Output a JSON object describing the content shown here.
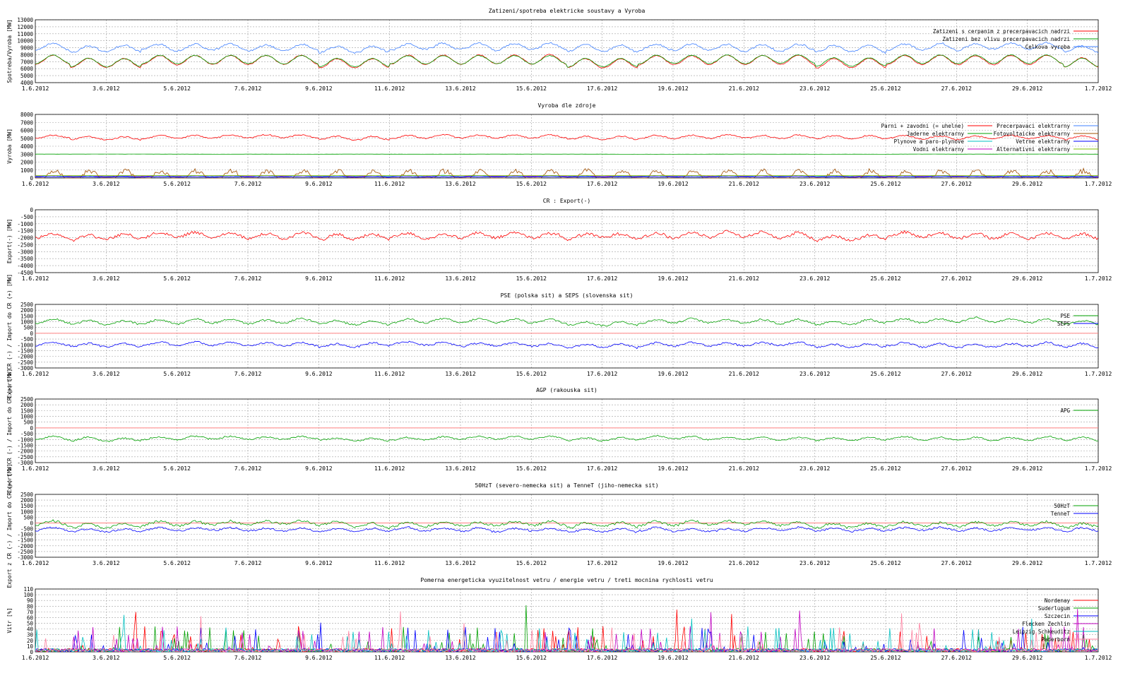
{
  "x_ticks": [
    "1.6.2012",
    "3.6.2012",
    "5.6.2012",
    "7.6.2012",
    "9.6.2012",
    "11.6.2012",
    "13.6.2012",
    "15.6.2012",
    "17.6.2012",
    "19.6.2012",
    "21.6.2012",
    "23.6.2012",
    "25.6.2012",
    "27.6.2012",
    "29.6.2012",
    "1.7.2012"
  ],
  "colors": {
    "red": "#ff0000",
    "green": "#00a000",
    "blue": "#0000ff",
    "lightblue": "#4080ff",
    "cyan": "#00c0c0",
    "magenta": "#c000c0",
    "brown": "#a05000",
    "olive": "#80c000",
    "pink": "#ff80a0",
    "zero_line": "#ff8080",
    "grid": "#a0a0a0"
  },
  "chart_data": [
    {
      "type": "line",
      "title": "Zatizeni/spotreba elektricke soustavy a Vyroba",
      "ylabel": "Spotreba/Vyroba [MW]",
      "ylim": [
        4000,
        13000
      ],
      "yticks": [
        "13000",
        "12000",
        "11000",
        "10000",
        "9000",
        "8000",
        "7000",
        "6000",
        "5000",
        "4000"
      ],
      "grid": true,
      "legend": "top-right",
      "series": [
        {
          "name": "Zatizeni s cerpanim z precerpavacich nadrzi",
          "color": "red",
          "base": 6600,
          "amp": 1300,
          "noise": 120
        },
        {
          "name": "Zatizeni bez vlivu precerpavacich nadrzi",
          "color": "green",
          "base": 6700,
          "amp": 1200,
          "noise": 100
        },
        {
          "name": "Celkova vyroba",
          "color": "lightblue",
          "base": 8700,
          "amp": 900,
          "noise": 250
        }
      ]
    },
    {
      "type": "line",
      "title": "Vyroba dle zdroje",
      "ylabel": "Vyroba [MW]",
      "ylim": [
        0,
        8000
      ],
      "yticks": [
        "8000",
        "7000",
        "6000",
        "5000",
        "4000",
        "3000",
        "2000",
        "1000",
        "0"
      ],
      "grid": true,
      "legend": "top-right",
      "series": [
        {
          "name": "Parni + zavodni (= uhelne)",
          "color": "red",
          "base": 5000,
          "amp": 400,
          "noise": 150
        },
        {
          "name": "Jaderne elektrarny",
          "color": "green",
          "base": 3000,
          "amp": 0,
          "noise": 15
        },
        {
          "name": "Plynove a paro-plynove",
          "color": "cyan",
          "base": 250,
          "amp": 60,
          "noise": 30
        },
        {
          "name": "Vodni elektrarny",
          "color": "magenta",
          "base": 200,
          "amp": 100,
          "noise": 40
        },
        {
          "name": "Precerpavaci elektrarny",
          "color": "lightblue",
          "base": 150,
          "amp": 150,
          "noise": 40
        },
        {
          "name": "Fotovoltaicke elektrarny",
          "color": "brown",
          "base": 0,
          "amp": 1100,
          "noise": 0,
          "solar": true
        },
        {
          "name": "Vetrne elektrarny",
          "color": "blue",
          "base": 100,
          "amp": 40,
          "noise": 40
        },
        {
          "name": "Alternativni elektrarny",
          "color": "olive",
          "base": 300,
          "amp": 0,
          "noise": 10
        }
      ]
    },
    {
      "type": "line",
      "title": "CR : Export(-)",
      "ylabel": "Export(-) [MW]",
      "ylim": [
        -4500,
        0
      ],
      "yticks": [
        "0",
        "-500",
        "-1000",
        "-1500",
        "-2000",
        "-2500",
        "-3000",
        "-3500",
        "-4000",
        "-4500"
      ],
      "grid": true,
      "legend": "none",
      "series": [
        {
          "name": "",
          "color": "red",
          "base": -2000,
          "amp": 350,
          "noise": 200
        }
      ]
    },
    {
      "type": "line",
      "title": "PSE (polska sit) a SEPS (slovenska sit)",
      "ylabel": "Export z CR (-) / Import do CR (+) [MW]",
      "ylim": [
        -3000,
        2500
      ],
      "yticks": [
        "2500",
        "2000",
        "1500",
        "1000",
        "500",
        "0",
        "-500",
        "-1000",
        "-1500",
        "-2000",
        "-2500",
        "-3000"
      ],
      "grid": true,
      "legend": "top-right",
      "series": [
        {
          "name": "PSE",
          "color": "green",
          "base": 900,
          "amp": 350,
          "noise": 150
        },
        {
          "name": "SEPS",
          "color": "blue",
          "base": -1100,
          "amp": 300,
          "noise": 150
        }
      ]
    },
    {
      "type": "line",
      "title": "AGP (rakouska sit)",
      "ylabel": "Export z CR (-) / Import do CR (+) [MW]",
      "ylim": [
        -3000,
        2500
      ],
      "yticks": [
        "2500",
        "2000",
        "1500",
        "1000",
        "500",
        "0",
        "-500",
        "-1000",
        "-1500",
        "-2000",
        "-2500",
        "-3000"
      ],
      "grid": true,
      "legend": "top-right",
      "series": [
        {
          "name": "APG",
          "color": "green",
          "base": -1000,
          "amp": 250,
          "noise": 120
        }
      ]
    },
    {
      "type": "line",
      "title": "50HzT (severo-nemecka sit) a TenneT (jiho-nemecka sit)",
      "ylabel": "Export z CR (-) / Import do CR (+) [MW]",
      "ylim": [
        -3000,
        2500
      ],
      "yticks": [
        "2500",
        "2000",
        "1500",
        "1000",
        "500",
        "0",
        "-500",
        "-1000",
        "-1500",
        "-2000",
        "-2500",
        "-3000"
      ],
      "grid": true,
      "legend": "top-right",
      "series": [
        {
          "name": "50HzT",
          "color": "green",
          "base": -200,
          "amp": 350,
          "noise": 200
        },
        {
          "name": "TenneT",
          "color": "blue",
          "base": -700,
          "amp": 250,
          "noise": 150
        }
      ]
    },
    {
      "type": "line",
      "title": "Pomerna energeticka vyuzitelnost vetru / energie vetru / treti mocnina rychlosti vetru",
      "ylabel": "Vitr [%]",
      "ylim": [
        0,
        110
      ],
      "yticks": [
        "110",
        "100",
        "90",
        "80",
        "70",
        "60",
        "50",
        "40",
        "30",
        "20",
        "10",
        "0"
      ],
      "grid": true,
      "legend": "top-right",
      "series": [
        {
          "name": "Nordenay",
          "color": "red",
          "spiky": true
        },
        {
          "name": "Suderlugum",
          "color": "green",
          "spiky": true
        },
        {
          "name": "Szczecin",
          "color": "blue",
          "spiky": true
        },
        {
          "name": "Flecken Zechlin",
          "color": "magenta",
          "spiky": true
        },
        {
          "name": "Leipzig Schkeuditz",
          "color": "cyan",
          "spiky": true
        },
        {
          "name": "Paderborn",
          "color": "pink",
          "spiky": true
        }
      ]
    }
  ]
}
